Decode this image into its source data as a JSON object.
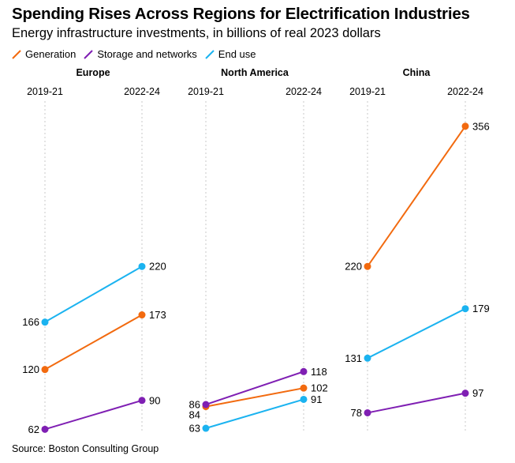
{
  "title": "Spending Rises Across Regions for Electrification Industries",
  "subtitle": "Energy infrastructure investments, in billions of real 2023 dollars",
  "source": "Source: Boston Consulting Group",
  "colors": {
    "Generation": "#f26a0f",
    "Storage and networks": "#7f1fb3",
    "End use": "#1bb3f0"
  },
  "chart_data": {
    "type": "line",
    "subtype": "slope",
    "x": [
      "2019-21",
      "2022-24"
    ],
    "legend": [
      "Generation",
      "Storage and networks",
      "End use"
    ],
    "legend_position": "top-left",
    "grid": false,
    "panels": [
      {
        "name": "Europe",
        "ylim": [
          50,
          370
        ],
        "series": [
          {
            "name": "Generation",
            "values": [
              120,
              173
            ]
          },
          {
            "name": "Storage and networks",
            "values": [
              62,
              90
            ]
          },
          {
            "name": "End use",
            "values": [
              166,
              220
            ]
          }
        ]
      },
      {
        "name": "North America",
        "ylim": [
          50,
          370
        ],
        "series": [
          {
            "name": "Generation",
            "values": [
              84,
              102
            ]
          },
          {
            "name": "Storage and networks",
            "values": [
              86,
              118
            ]
          },
          {
            "name": "End use",
            "values": [
              63,
              91
            ]
          }
        ]
      },
      {
        "name": "China",
        "ylim": [
          50,
          370
        ],
        "series": [
          {
            "name": "Generation",
            "values": [
              220,
              356
            ]
          },
          {
            "name": "Storage and networks",
            "values": [
              78,
              97
            ]
          },
          {
            "name": "End use",
            "values": [
              131,
              179
            ]
          }
        ]
      }
    ]
  }
}
